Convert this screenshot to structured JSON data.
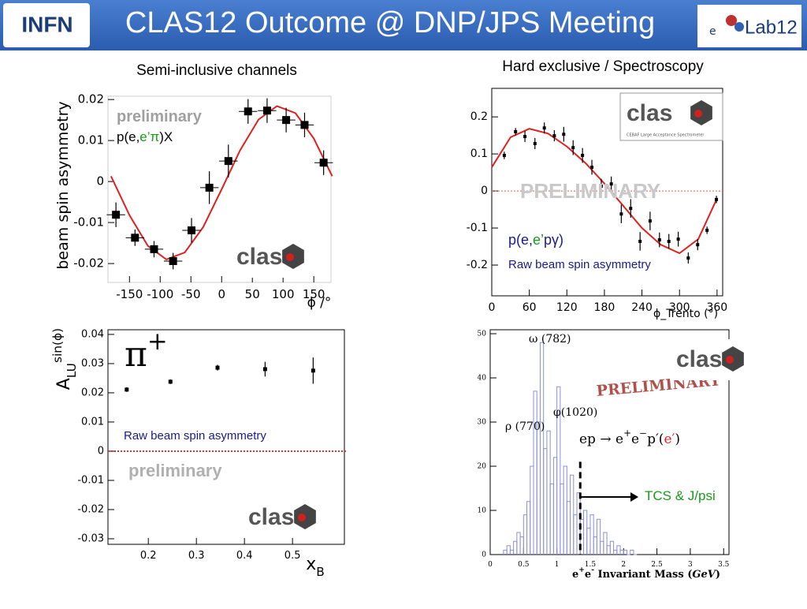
{
  "header": {
    "title": "CLAS12 Outcome @ DNP/JPS Meeting",
    "left_logo": "INFN",
    "right_logo_prefix": "e",
    "right_logo": "Lab12"
  },
  "sections": [
    "Semi-inclusive channels",
    "Hard exclusive / Spectroscopy"
  ],
  "chart_data": [
    {
      "type": "scatter",
      "logo": "clas",
      "x_label": [
        {
          "text": "ϕ /°"
        }
      ],
      "y_label": [
        {
          "text": "beam spin asymmetry"
        }
      ],
      "annotations": [
        {
          "parts": [
            {
              "text": "preliminary",
              "color": "#a0a0a0"
            }
          ]
        },
        {
          "parts": [
            {
              "text": "p(e,",
              "color": "#000000"
            },
            {
              "text": "e’π",
              "color": "#1a9a1a"
            },
            {
              "text": ")X",
              "color": "#000000"
            }
          ]
        }
      ],
      "x": [
        -172,
        -141,
        -110,
        -79,
        -49,
        -20,
        11,
        43,
        74,
        105,
        135,
        166
      ],
      "values": [
        -0.0081,
        -0.0137,
        -0.0165,
        -0.0194,
        -0.0119,
        -0.0015,
        0.005,
        0.0171,
        0.0173,
        0.015,
        0.0138,
        0.0046
      ],
      "errors": [
        0.003,
        0.002,
        0.002,
        0.002,
        0.003,
        0.004,
        0.004,
        0.003,
        0.003,
        0.003,
        0.003,
        0.003
      ],
      "x_errors": [
        15,
        15,
        15,
        15,
        15,
        15,
        15,
        15,
        15,
        15,
        15,
        15
      ],
      "color": "#000000",
      "fit_x": [
        -180,
        -150,
        -120,
        -90,
        -60,
        -30,
        0,
        30,
        60,
        90,
        120,
        150,
        180
      ],
      "fit_values": [
        0.0013,
        -0.0082,
        -0.0157,
        -0.019,
        -0.0173,
        -0.0111,
        -0.0019,
        0.0076,
        0.0151,
        0.0184,
        0.0167,
        0.0105,
        0.0013
      ],
      "fit_color": "#e02020",
      "xlim": [
        -185,
        178
      ],
      "ylim": [
        -0.0246,
        0.0208
      ],
      "xticks": [
        -150,
        -100,
        -50,
        0,
        50,
        100,
        150
      ],
      "yticks": [
        0.02,
        0.01,
        0,
        -0.01,
        -0.02
      ]
    },
    {
      "type": "scatter",
      "logo": "clas",
      "logo_caption": "CEBAF Large Acceptance Spectrometer",
      "x_label": [
        {
          "text": "ϕ_Trento (°)"
        }
      ],
      "y_label": [],
      "annotations": [
        {
          "parts": [
            {
              "text": "PRELIMINARY",
              "color": "#c8c8c8"
            }
          ]
        },
        {
          "parts": [
            {
              "text": "p(e,",
              "color": "#1a1a8a"
            },
            {
              "text": "e’",
              "color": "#1a9a1a"
            },
            {
              "text": "pγ)",
              "color": "#1a1a8a"
            }
          ]
        },
        {
          "parts": [
            {
              "text": "Raw beam spin asymmetry",
              "color": "#1a1a8a"
            }
          ]
        }
      ],
      "x": [
        20,
        38,
        53,
        69,
        84,
        100,
        115,
        130,
        145,
        160,
        175,
        191,
        207,
        222,
        237,
        253,
        268,
        283,
        298,
        314,
        329,
        344,
        359
      ],
      "values": [
        0.096,
        0.16,
        0.147,
        0.128,
        0.17,
        0.149,
        0.153,
        0.117,
        0.096,
        0.064,
        0.013,
        0.019,
        -0.062,
        -0.047,
        -0.136,
        -0.081,
        -0.132,
        -0.136,
        -0.13,
        -0.181,
        -0.145,
        -0.106,
        -0.023
      ],
      "errors": [
        0.01,
        0.01,
        0.015,
        0.015,
        0.015,
        0.015,
        0.02,
        0.02,
        0.02,
        0.02,
        0.02,
        0.02,
        0.025,
        0.025,
        0.025,
        0.025,
        0.02,
        0.02,
        0.02,
        0.015,
        0.015,
        0.01,
        0.01
      ],
      "color": "#000000",
      "fit_x": [
        0,
        30,
        60,
        90,
        120,
        150,
        180,
        210,
        240,
        270,
        300,
        330,
        360
      ],
      "fit_values": [
        0.064,
        0.145,
        0.168,
        0.155,
        0.12,
        0.075,
        0.02,
        -0.04,
        -0.1,
        -0.145,
        -0.168,
        -0.13,
        -0.02
      ],
      "fit_color": "#e02020",
      "zero_line": "#e05050",
      "xlim": [
        0,
        369
      ],
      "ylim": [
        -0.283,
        0.277
      ],
      "xticks": [
        0,
        60,
        120,
        180,
        240,
        300,
        360
      ],
      "yticks": [
        0.2,
        0.1,
        0,
        -0.1,
        -0.2
      ]
    },
    {
      "type": "scatter",
      "logo": "clas",
      "x_label": [
        {
          "text": "x"
        },
        {
          "text": "B",
          "baseline": "sub"
        }
      ],
      "y_label": [
        {
          "text": "A"
        },
        {
          "text": "LU",
          "baseline": "sub"
        },
        {
          "text": "sin(ϕ)",
          "baseline": "super"
        }
      ],
      "annotations": [
        {
          "parts": [
            {
              "text": "π",
              "color": "#000000"
            },
            {
              "text": "+",
              "color": "#000000",
              "baseline": "super"
            }
          ]
        },
        {
          "parts": [
            {
              "text": "Raw beam spin asymmetry",
              "color": "#1a1a8a"
            }
          ]
        },
        {
          "parts": [
            {
              "text": "preliminary",
              "color": "#b0b0b0"
            }
          ]
        }
      ],
      "x": [
        0.155,
        0.246,
        0.344,
        0.443,
        0.543
      ],
      "values": [
        0.0211,
        0.0238,
        0.0286,
        0.0281,
        0.0276
      ],
      "errors": [
        0.0008,
        0.0008,
        0.001,
        0.0025,
        0.0045
      ],
      "color": "#000000",
      "zero_line": "#e03030",
      "xlim": [
        0.116,
        0.608
      ],
      "ylim": [
        -0.0319,
        0.0416
      ],
      "xticks": [
        0.2,
        0.3,
        0.4,
        0.5
      ],
      "yticks": [
        0.04,
        0.03,
        0.02,
        0.01,
        0,
        -0.01,
        -0.02,
        -0.03
      ]
    },
    {
      "type": "histogram",
      "logo": "clas",
      "x_label": [
        {
          "text": "e"
        },
        {
          "text": "+",
          "baseline": "super"
        },
        {
          "text": "e"
        },
        {
          "text": "-",
          "baseline": "super"
        },
        {
          "text": " Invariant Mass ("
        },
        {
          "text": "GeV",
          "style": "italic"
        },
        {
          "text": ")"
        }
      ],
      "y_label": [],
      "annotations": [
        {
          "parts": [
            {
              "text": "ω (782)",
              "color": "#000000"
            }
          ]
        },
        {
          "parts": [
            {
              "text": "ρ (770)",
              "color": "#000000"
            }
          ]
        },
        {
          "parts": [
            {
              "text": "φ(1020)",
              "color": "#000000"
            }
          ]
        },
        {
          "parts": [
            {
              "text": "PRELIMINARY",
              "color": "#b0504a"
            }
          ]
        },
        {
          "parts": [
            {
              "text": "ep  → e",
              "color": "#000000"
            },
            {
              "text": "+",
              "color": "#000000",
              "baseline": "super"
            },
            {
              "text": "e",
              "color": "#000000"
            },
            {
              "text": "−",
              "color": "#000000",
              "baseline": "super"
            },
            {
              "text": "p′(",
              "color": "#000000"
            },
            {
              "text": "e′",
              "color": "#e02020"
            },
            {
              "text": ")",
              "color": "#000000"
            }
          ]
        },
        {
          "parts": [
            {
              "text": "TCS & J/psi",
              "color": "#1a9a1a"
            }
          ]
        }
      ],
      "bins": [
        0.2,
        0.25,
        0.3,
        0.35,
        0.4,
        0.45,
        0.5,
        0.55,
        0.6,
        0.65,
        0.7,
        0.75,
        0.8,
        0.85,
        0.9,
        0.95,
        1.0,
        1.05,
        1.1,
        1.15,
        1.2,
        1.25,
        1.3,
        1.35,
        1.4,
        1.45,
        1.5,
        1.55,
        1.6,
        1.65,
        1.7,
        1.75,
        1.8,
        1.85,
        1.9,
        1.95,
        2.0,
        2.05,
        2.1,
        2.15,
        2.2
      ],
      "counts": [
        1,
        2,
        1,
        3,
        5,
        4,
        9,
        12,
        20,
        37,
        30,
        48,
        24,
        28,
        16,
        22,
        38,
        16,
        20,
        12,
        18,
        9,
        14,
        8,
        10,
        6,
        9,
        4,
        8,
        3,
        5,
        2,
        3,
        1,
        2,
        1,
        1,
        0,
        1,
        0
      ],
      "color": "#8a90d8",
      "marker_x": 1.35,
      "xlim": [
        0,
        3.58
      ],
      "ylim": [
        0,
        50.9
      ],
      "xticks": [
        0,
        0.5,
        1,
        1.5,
        2,
        2.5,
        3,
        3.5
      ],
      "yticks": [
        0,
        10,
        20,
        30,
        40,
        50
      ]
    }
  ]
}
